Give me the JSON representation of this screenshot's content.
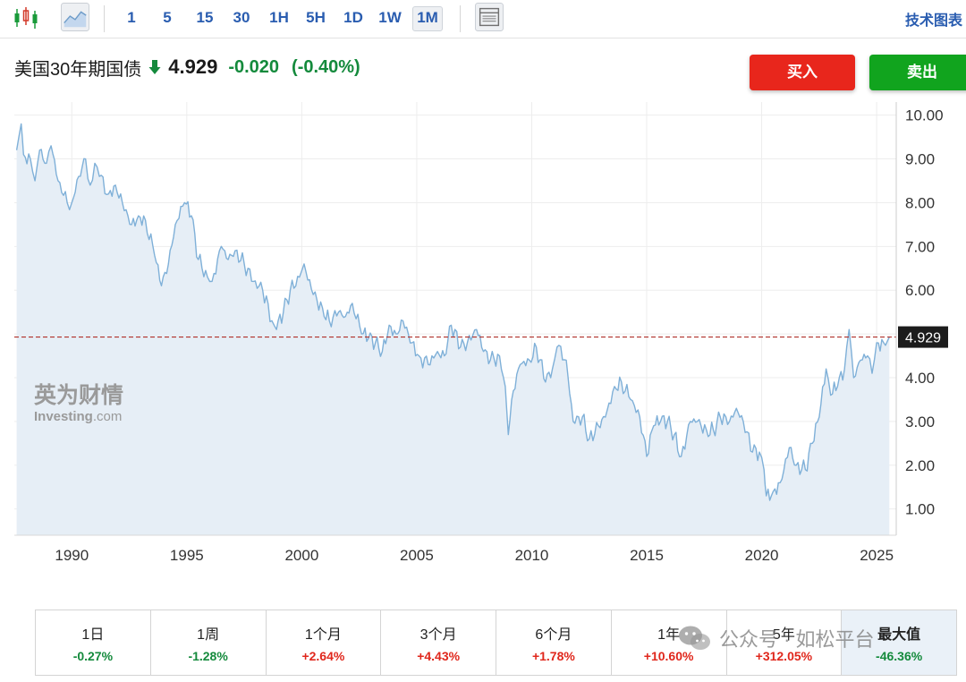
{
  "toolbar": {
    "intervals": [
      "1",
      "5",
      "15",
      "30",
      "1H",
      "5H",
      "1D",
      "1W",
      "1M"
    ],
    "active_interval": "1M",
    "tech_chart_label": "技术图表"
  },
  "quote": {
    "name": "美国30年期国债",
    "price": "4.929",
    "change": "-0.020",
    "change_pct": "(-0.40%)"
  },
  "actions": {
    "buy": "买入",
    "sell": "卖出"
  },
  "logo": {
    "cn": "英为财情",
    "en_main": "Investing",
    "en_suffix": ".com"
  },
  "colors": {
    "line": "#7fb0d8",
    "fill": "#e6eef6",
    "reference_line": "#b0302a",
    "up": "#e0271c",
    "down": "#148a3c"
  },
  "chart_data": {
    "type": "area",
    "title": "",
    "xlabel": "",
    "ylabel": "",
    "x_ticks": [
      "1990",
      "1995",
      "2000",
      "2005",
      "2010",
      "2015",
      "2020",
      "2025"
    ],
    "y_ticks": [
      "1.00",
      "2.00",
      "3.00",
      "4.00",
      "5.00",
      "6.00",
      "7.00",
      "8.00",
      "9.00",
      "10.00"
    ],
    "xlim": [
      1987.5,
      2025.85
    ],
    "ylim": [
      0.4,
      10.3
    ],
    "current_value_label": "4.929",
    "current_value": 4.929,
    "series": [
      {
        "values": [
          [
            1987.6,
            9.2
          ],
          [
            1987.8,
            9.8
          ],
          [
            1987.9,
            9.1
          ],
          [
            1988.2,
            9.0
          ],
          [
            1988.4,
            8.5
          ],
          [
            1988.6,
            9.2
          ],
          [
            1988.9,
            8.9
          ],
          [
            1989.1,
            9.3
          ],
          [
            1989.4,
            8.5
          ],
          [
            1989.8,
            8.0
          ],
          [
            1990.0,
            8.0
          ],
          [
            1990.3,
            8.6
          ],
          [
            1990.6,
            9.0
          ],
          [
            1990.8,
            8.4
          ],
          [
            1991.0,
            8.9
          ],
          [
            1991.2,
            8.6
          ],
          [
            1991.6,
            8.2
          ],
          [
            1991.9,
            8.4
          ],
          [
            1992.2,
            8.0
          ],
          [
            1992.6,
            7.5
          ],
          [
            1992.9,
            7.7
          ],
          [
            1993.2,
            7.6
          ],
          [
            1993.6,
            6.8
          ],
          [
            1993.9,
            6.1
          ],
          [
            1994.2,
            6.6
          ],
          [
            1994.5,
            7.5
          ],
          [
            1994.9,
            8.0
          ],
          [
            1995.2,
            7.7
          ],
          [
            1995.5,
            6.7
          ],
          [
            1995.9,
            6.3
          ],
          [
            1996.1,
            6.2
          ],
          [
            1996.5,
            7.0
          ],
          [
            1996.8,
            6.7
          ],
          [
            1997.1,
            6.9
          ],
          [
            1997.5,
            6.6
          ],
          [
            1997.9,
            6.2
          ],
          [
            1998.3,
            6.0
          ],
          [
            1998.7,
            5.3
          ],
          [
            1998.9,
            5.1
          ],
          [
            1999.2,
            5.5
          ],
          [
            1999.5,
            6.0
          ],
          [
            1999.9,
            6.3
          ],
          [
            2000.1,
            6.6
          ],
          [
            2000.5,
            5.9
          ],
          [
            2000.9,
            5.6
          ],
          [
            2001.2,
            5.3
          ],
          [
            2001.6,
            5.5
          ],
          [
            2001.9,
            5.4
          ],
          [
            2002.2,
            5.7
          ],
          [
            2002.6,
            5.0
          ],
          [
            2002.9,
            4.9
          ],
          [
            2003.2,
            4.8
          ],
          [
            2003.5,
            4.6
          ],
          [
            2003.8,
            5.2
          ],
          [
            2004.1,
            5.0
          ],
          [
            2004.4,
            5.3
          ],
          [
            2004.8,
            4.8
          ],
          [
            2005.1,
            4.5
          ],
          [
            2005.5,
            4.3
          ],
          [
            2005.9,
            4.6
          ],
          [
            2006.2,
            4.5
          ],
          [
            2006.5,
            5.2
          ],
          [
            2006.9,
            4.7
          ],
          [
            2007.2,
            4.8
          ],
          [
            2007.6,
            5.1
          ],
          [
            2007.9,
            4.6
          ],
          [
            2008.2,
            4.4
          ],
          [
            2008.6,
            4.5
          ],
          [
            2008.85,
            3.8
          ],
          [
            2008.98,
            2.7
          ],
          [
            2009.2,
            3.7
          ],
          [
            2009.5,
            4.3
          ],
          [
            2009.9,
            4.4
          ],
          [
            2010.2,
            4.7
          ],
          [
            2010.6,
            3.9
          ],
          [
            2010.9,
            4.2
          ],
          [
            2011.1,
            4.7
          ],
          [
            2011.5,
            4.4
          ],
          [
            2011.8,
            3.0
          ],
          [
            2012.2,
            3.1
          ],
          [
            2012.5,
            2.6
          ],
          [
            2012.9,
            2.9
          ],
          [
            2013.2,
            3.1
          ],
          [
            2013.6,
            3.8
          ],
          [
            2013.9,
            3.9
          ],
          [
            2014.3,
            3.5
          ],
          [
            2014.7,
            3.1
          ],
          [
            2015.0,
            2.2
          ],
          [
            2015.3,
            2.9
          ],
          [
            2015.6,
            3.0
          ],
          [
            2015.9,
            3.0
          ],
          [
            2016.2,
            2.7
          ],
          [
            2016.5,
            2.2
          ],
          [
            2016.9,
            3.0
          ],
          [
            2017.2,
            3.0
          ],
          [
            2017.6,
            2.8
          ],
          [
            2017.9,
            2.8
          ],
          [
            2018.2,
            3.1
          ],
          [
            2018.6,
            3.0
          ],
          [
            2018.9,
            3.3
          ],
          [
            2019.2,
            3.0
          ],
          [
            2019.6,
            2.3
          ],
          [
            2019.9,
            2.3
          ],
          [
            2020.1,
            1.9
          ],
          [
            2020.2,
            1.3
          ],
          [
            2020.5,
            1.4
          ],
          [
            2020.8,
            1.6
          ],
          [
            2021.2,
            2.4
          ],
          [
            2021.5,
            2.0
          ],
          [
            2021.9,
            1.9
          ],
          [
            2022.2,
            2.5
          ],
          [
            2022.5,
            3.1
          ],
          [
            2022.8,
            4.2
          ],
          [
            2023.0,
            3.6
          ],
          [
            2023.3,
            3.8
          ],
          [
            2023.6,
            4.2
          ],
          [
            2023.8,
            5.1
          ],
          [
            2024.0,
            4.0
          ],
          [
            2024.3,
            4.4
          ],
          [
            2024.6,
            4.5
          ],
          [
            2024.8,
            4.1
          ],
          [
            2025.0,
            4.8
          ],
          [
            2025.3,
            4.8
          ],
          [
            2025.55,
            4.929
          ]
        ]
      }
    ]
  },
  "performance": [
    {
      "label": "1日",
      "value": "-0.27%",
      "direction": "neg"
    },
    {
      "label": "1周",
      "value": "-1.28%",
      "direction": "neg"
    },
    {
      "label": "1个月",
      "value": "+2.64%",
      "direction": "pos"
    },
    {
      "label": "3个月",
      "value": "+4.43%",
      "direction": "pos"
    },
    {
      "label": "6个月",
      "value": "+1.78%",
      "direction": "pos"
    },
    {
      "label": "1年",
      "value": "+10.60%",
      "direction": "pos"
    },
    {
      "label": "5年",
      "value": "+312.05%",
      "direction": "pos"
    },
    {
      "label": "最大值",
      "value": "-46.36%",
      "direction": "neg"
    }
  ],
  "watermark": {
    "text": "公众号 · 如松平台",
    "icon": "wechat-icon"
  }
}
